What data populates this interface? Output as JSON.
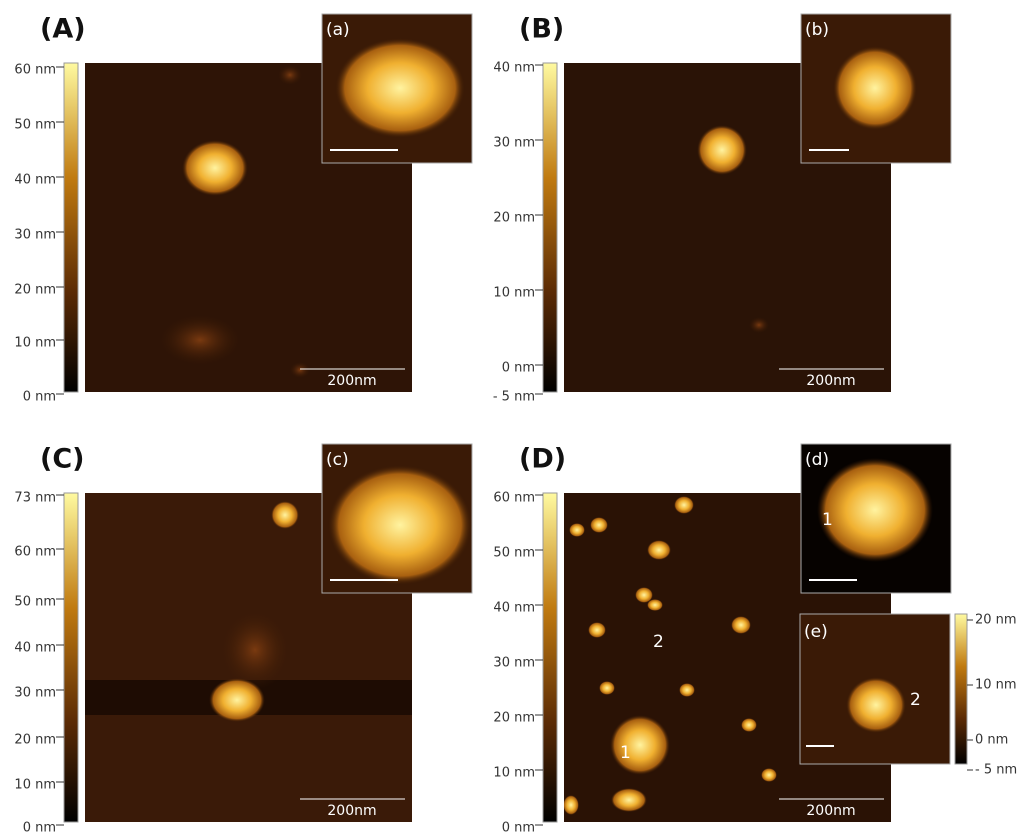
{
  "panels": [
    {
      "label": "(A)",
      "inset_label": "(a)",
      "scale_bar": "200nm",
      "colorbar_ticks": [
        "60 nm",
        "50 nm",
        "40 nm",
        "30 nm",
        "20 nm",
        "10 nm",
        "0 nm"
      ]
    },
    {
      "label": "(B)",
      "inset_label": "(b)",
      "scale_bar": "200nm",
      "colorbar_ticks": [
        "40 nm",
        "30 nm",
        "20 nm",
        "10 nm",
        "0 nm",
        "- 5 nm"
      ]
    },
    {
      "label": "(C)",
      "inset_label": "(c)",
      "scale_bar": "200nm",
      "colorbar_ticks": [
        "73 nm",
        "60 nm",
        "50 nm",
        "40 nm",
        "30 nm",
        "20 nm",
        "10 nm",
        "0 nm"
      ]
    },
    {
      "label": "(D)",
      "inset_label": "(d)",
      "scale_bar": "200nm",
      "colorbar_ticks": [
        "60 nm",
        "50 nm",
        "40 nm",
        "30 nm",
        "20 nm",
        "10 nm",
        "0 nm"
      ],
      "particle_labels": [
        "1",
        "2"
      ],
      "inset_particle_label": "1"
    }
  ],
  "inset_e": {
    "label": "(e)",
    "particle_label": "2",
    "colorbar_ticks": [
      "20 nm",
      "10 nm",
      "0 nm",
      "- 5 nm"
    ]
  }
}
